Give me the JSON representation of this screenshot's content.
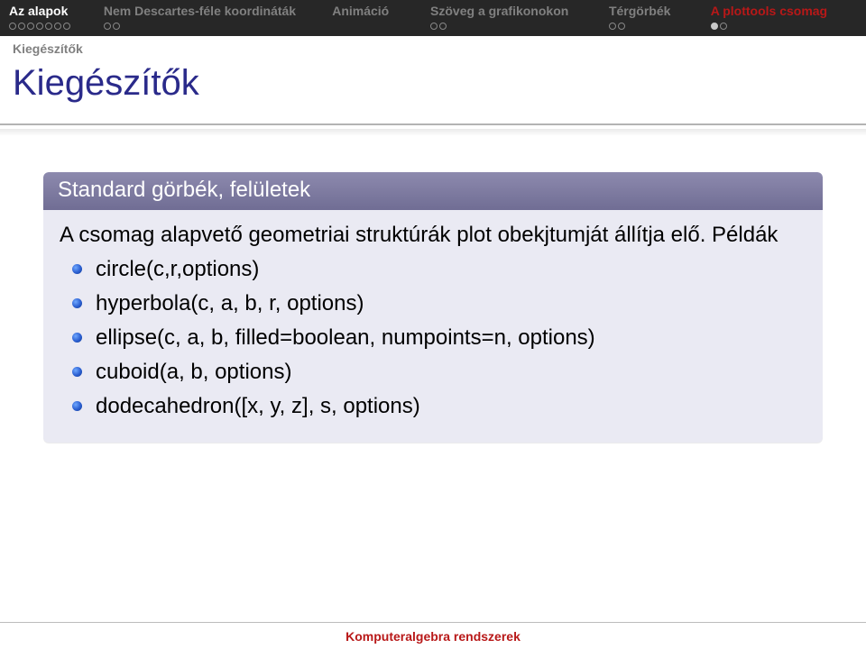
{
  "nav": {
    "items": [
      {
        "label": "Az alapok",
        "widthPx": 106,
        "style": "active",
        "dots": [
          "empty",
          "empty",
          "empty",
          "empty",
          "empty",
          "empty",
          "empty"
        ]
      },
      {
        "label": "Nem Descartes-féle koordináták",
        "widthPx": 256,
        "style": "inactive",
        "dots": [
          "empty",
          "empty"
        ]
      },
      {
        "label": "Animáció",
        "widthPx": 110,
        "style": "inactive",
        "dots": []
      },
      {
        "label": "Szöveg a grafikonokon",
        "widthPx": 200,
        "style": "inactive",
        "dots": [
          "empty",
          "empty"
        ]
      },
      {
        "label": "Térgörbék",
        "widthPx": 114,
        "style": "inactive",
        "dots": [
          "empty",
          "empty"
        ]
      },
      {
        "label": "A plottools csomag",
        "widthPx": 164,
        "style": "red",
        "dots": [
          "filled",
          "empty"
        ]
      }
    ]
  },
  "subhead": "Kiegészítők",
  "title": "Kiegészítők",
  "block": {
    "title": "Standard görbék, felületek",
    "intro": "A csomag alapvető geometriai struktúrák plot obekjtumját állítja elő. Példák",
    "items": [
      "circle(c,r,options)",
      "hyperbola(c, a, b, r, options)",
      "ellipse(c, a, b, filled=boolean, numpoints=n, options)",
      "cuboid(a, b, options)",
      "dodecahedron([x, y, z], s, options)"
    ]
  },
  "footer": "Komputeralgebra rendszerek",
  "colors": {
    "navActive": "#ffffff",
    "navInactive": "#808080",
    "navRed": "#b81818",
    "title": "#2a2a8a",
    "blockHeaderTop": "#8d8aae",
    "blockHeaderBottom": "#706d94",
    "blockBg": "#eaeaf3",
    "bulletGradStart": "#6fa8ff",
    "bulletGradEnd": "#133a90",
    "pageBg": "#ffffff",
    "topbarBg": "#272727"
  },
  "typography": {
    "navFontSize": 14,
    "titleFontSize": 40,
    "blockTitleFontSize": 24,
    "bodyFontSize": 24,
    "footerFontSize": 14
  },
  "layout": {
    "widthPx": 960,
    "heightPx": 720
  }
}
